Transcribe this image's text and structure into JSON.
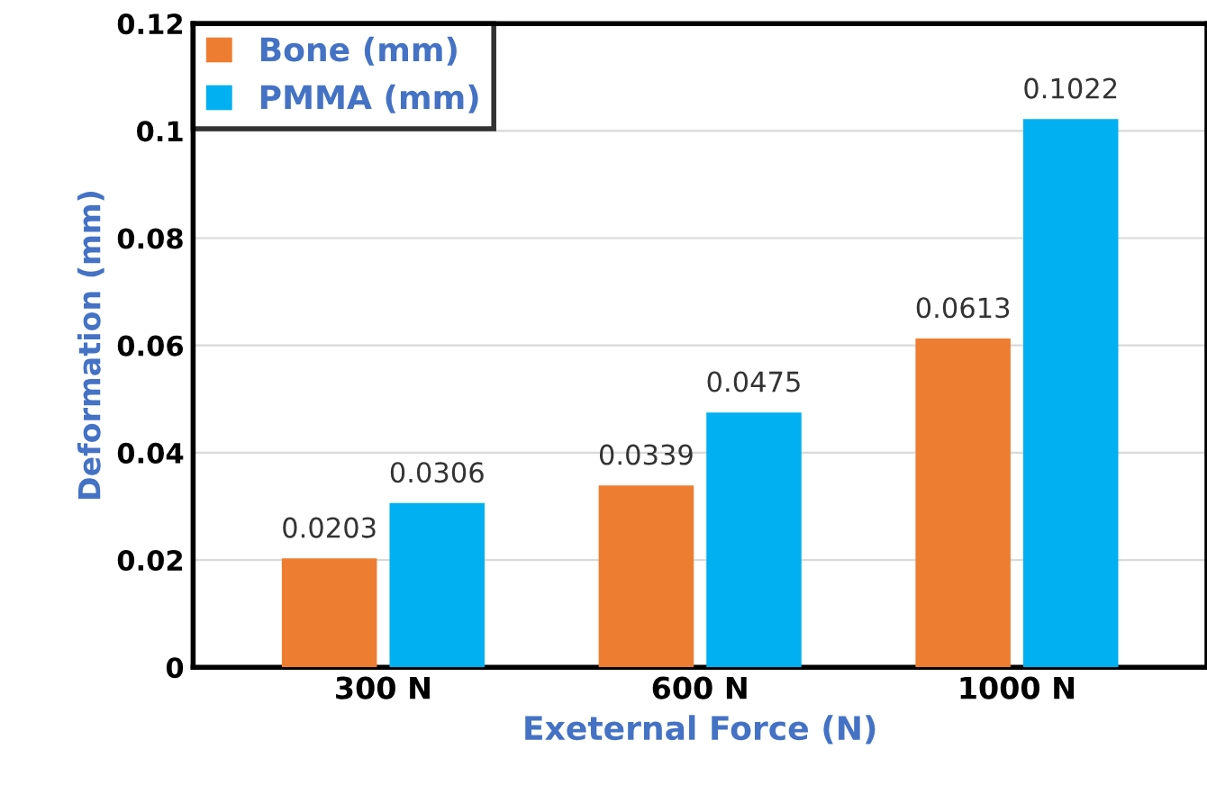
{
  "chart_data": {
    "type": "bar",
    "xlabel": "Exeternal Force (N)",
    "ylabel": "Deformation (mm)",
    "categories": [
      "300 N",
      "600 N",
      "1000 N"
    ],
    "series": [
      {
        "name": "Bone (mm)",
        "color": "#ed7d31",
        "values": [
          0.0203,
          0.0339,
          0.0613
        ]
      },
      {
        "name": "PMMA (mm)",
        "color": "#00b0f0",
        "values": [
          0.0306,
          0.0475,
          0.1022
        ]
      }
    ],
    "ylim": [
      0,
      0.12
    ],
    "yticks": [
      0,
      0.02,
      0.04,
      0.06,
      0.08,
      0.1,
      0.12
    ],
    "grid": "y",
    "legend": "top left",
    "data_labels": true
  }
}
